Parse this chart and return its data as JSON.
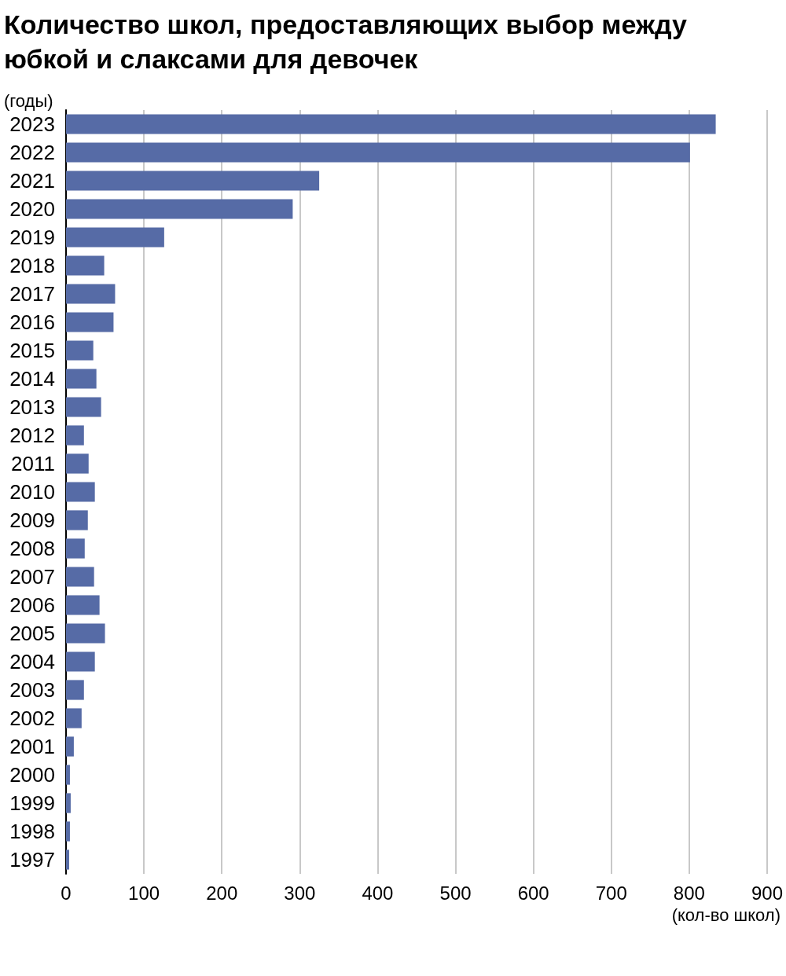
{
  "chart_data": {
    "type": "bar",
    "orientation": "horizontal",
    "title": "Количество школ, предоставляющих выбор между юбкой и слаксами для девочек",
    "ylabel": "(годы)",
    "xlabel": "(кол-во школ)",
    "categories": [
      "2023",
      "2022",
      "2021",
      "2020",
      "2019",
      "2018",
      "2017",
      "2016",
      "2015",
      "2014",
      "2013",
      "2012",
      "2011",
      "2010",
      "2009",
      "2008",
      "2007",
      "2006",
      "2005",
      "2004",
      "2003",
      "2002",
      "2001",
      "2000",
      "1999",
      "1998",
      "1997"
    ],
    "values": [
      834,
      801,
      325,
      291,
      126,
      49,
      63,
      61,
      35,
      39,
      45,
      23,
      29,
      37,
      28,
      24,
      36,
      43,
      50,
      37,
      23,
      20,
      10,
      5,
      6,
      5,
      4
    ],
    "color": "#566ba6",
    "xlim": [
      0,
      900
    ],
    "xticks": [
      0,
      100,
      200,
      300,
      400,
      500,
      600,
      700,
      800,
      900
    ],
    "grid": "x"
  }
}
